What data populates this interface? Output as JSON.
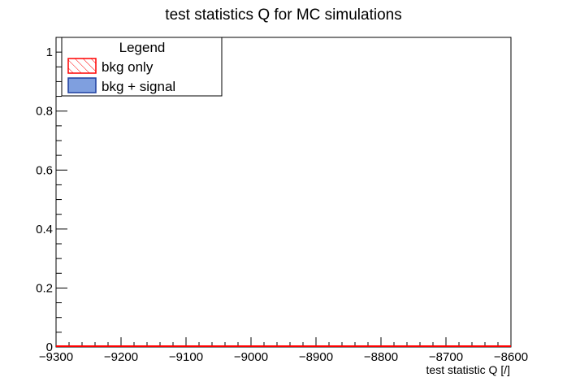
{
  "chart_data": {
    "type": "histogram",
    "title": "test statistics Q for MC simulations",
    "xlabel": "test statistic Q [/]",
    "ylabel": "",
    "xlim": [
      -9300,
      -8600
    ],
    "ylim": [
      0,
      1.05
    ],
    "x_ticks": [
      -9300,
      -9200,
      -9100,
      -9000,
      -8900,
      -8800,
      -8700,
      -8600
    ],
    "x_tick_labels": [
      "−9300",
      "−9200",
      "−9100",
      "−9000",
      "−8900",
      "−8800",
      "−8700",
      "−8600"
    ],
    "y_ticks": [
      0,
      0.2,
      0.4,
      0.6,
      0.8,
      1
    ],
    "y_tick_labels": [
      "0",
      "0.2",
      "0.4",
      "0.6",
      "0.8",
      "1"
    ],
    "grid": false,
    "legend": {
      "title": "Legend",
      "placement": "top-left",
      "entries": [
        {
          "label": "bkg only",
          "style": "hatched",
          "color": "#ff0000"
        },
        {
          "label": "bkg + signal",
          "style": "filled",
          "color": "#7f9fdf",
          "edge": "#1f3f9f"
        }
      ]
    },
    "series": [
      {
        "name": "bkg only",
        "values": [
          0
        ],
        "color": "#ff0000"
      },
      {
        "name": "bkg + signal",
        "values": [
          0
        ],
        "color": "#7f9fdf"
      }
    ]
  }
}
